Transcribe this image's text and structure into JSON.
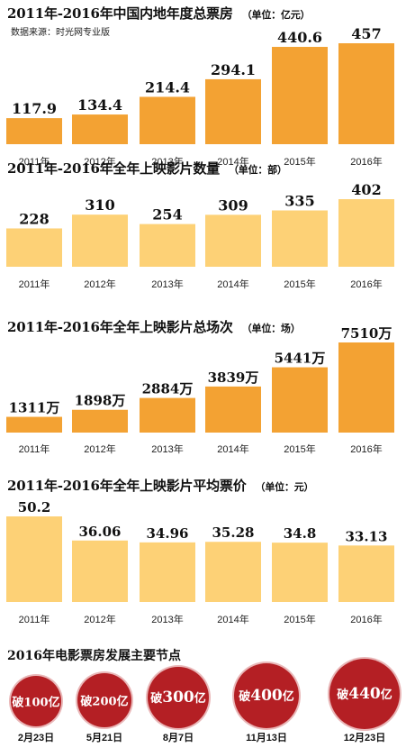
{
  "chart_data": [
    {
      "type": "bar",
      "title": "2011年-2016年中国内地年度总票房",
      "unit": "（单位：亿元）",
      "source": "数据来源：时光网专业版",
      "categories": [
        "2011年",
        "2012年",
        "2013年",
        "2014年",
        "2015年",
        "2016年"
      ],
      "values": [
        117.9,
        134.4,
        214.4,
        294.1,
        440.6,
        457
      ],
      "labels": [
        "117.9",
        "134.4",
        "214.4",
        "294.1",
        "440.6",
        "457"
      ],
      "color": "#f3a233"
    },
    {
      "type": "bar",
      "title": "2011年-2016年全年上映影片数量",
      "unit": "（单位：部）",
      "categories": [
        "2011年",
        "2012年",
        "2013年",
        "2014年",
        "2015年",
        "2016年"
      ],
      "values": [
        228,
        310,
        254,
        309,
        335,
        402
      ],
      "labels": [
        "228",
        "310",
        "254",
        "309",
        "335",
        "402"
      ],
      "color": "#fdd176"
    },
    {
      "type": "bar",
      "title": "2011年-2016年全年上映影片总场次",
      "unit": "（单位：场）",
      "categories": [
        "2011年",
        "2012年",
        "2013年",
        "2014年",
        "2015年",
        "2016年"
      ],
      "values": [
        1311,
        1898,
        2884,
        3839,
        5441,
        7510
      ],
      "labels": [
        "1311万",
        "1898万",
        "2884万",
        "3839万",
        "5441万",
        "7510万"
      ],
      "color": "#f3a233"
    },
    {
      "type": "bar",
      "title": "2011年-2016年全年上映影片平均票价",
      "unit": "（单位：元）",
      "categories": [
        "2011年",
        "2012年",
        "2013年",
        "2014年",
        "2015年",
        "2016年"
      ],
      "values": [
        50.2,
        36.06,
        34.96,
        35.28,
        34.8,
        33.13
      ],
      "labels": [
        "50.2",
        "36.06",
        "34.96",
        "35.28",
        "34.8",
        "33.13"
      ],
      "color": "#fdd176"
    }
  ],
  "milestones": {
    "title": "2016年电影票房发展主要节点",
    "items": [
      {
        "prefix": "破",
        "value": "100",
        "suffix": "亿",
        "date": "2月23日"
      },
      {
        "prefix": "破",
        "value": "200",
        "suffix": "亿",
        "date": "5月21日"
      },
      {
        "prefix": "破",
        "value": "300",
        "suffix": "亿",
        "date": "8月7日"
      },
      {
        "prefix": "破",
        "value": "400",
        "suffix": "亿",
        "date": "11月13日"
      },
      {
        "prefix": "破",
        "value": "440",
        "suffix": "亿",
        "date": "12月23日"
      }
    ],
    "color": "#b41f24"
  }
}
